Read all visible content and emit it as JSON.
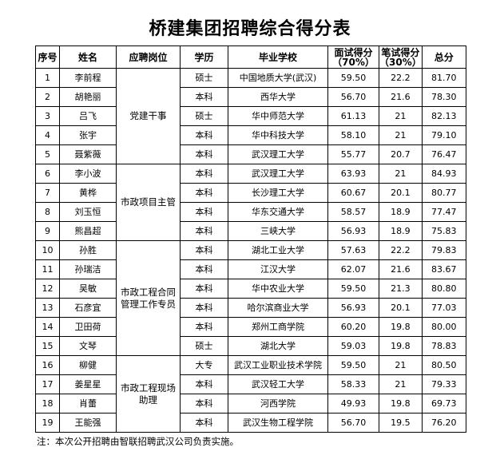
{
  "title": "桥建集团招聘综合得分表",
  "headers": [
    "序号",
    "姓名",
    "应聘岗位",
    "学历",
    "毕业学校",
    "面试得分（70%）",
    "笔试得分（30%）",
    "总分"
  ],
  "groups": [
    {
      "position": "党建干事",
      "rows": [
        [
          "1",
          "李前程",
          "硕士",
          "中国地质大学(武汉)",
          "59.50",
          "22.2",
          "81.70"
        ],
        [
          "2",
          "胡艳丽",
          "本科",
          "西华大学",
          "56.70",
          "21.6",
          "78.30"
        ],
        [
          "3",
          "吕飞",
          "硕士",
          "华中师范大学",
          "61.13",
          "21",
          "82.13"
        ],
        [
          "4",
          "张宇",
          "本科",
          "华中科技大学",
          "58.10",
          "21",
          "79.10"
        ],
        [
          "5",
          "聂紫薇",
          "本科",
          "武汉理工大学",
          "55.77",
          "20.7",
          "76.47"
        ]
      ]
    },
    {
      "position": "市政项目主管",
      "rows": [
        [
          "6",
          "李小波",
          "本科",
          "武汉理工大学",
          "63.93",
          "21",
          "84.93"
        ],
        [
          "7",
          "黄桦",
          "本科",
          "长沙理工大学",
          "60.67",
          "20.1",
          "80.77"
        ],
        [
          "8",
          "刘玉恒",
          "本科",
          "华东交通大学",
          "58.57",
          "18.9",
          "77.47"
        ],
        [
          "9",
          "熊昌超",
          "本科",
          "三峡大学",
          "56.93",
          "18.9",
          "75.83"
        ]
      ]
    },
    {
      "position": "市政工程合同管理工作专员",
      "rows": [
        [
          "10",
          "孙胜",
          "本科",
          "湖北工业大学",
          "57.63",
          "22.2",
          "79.83"
        ],
        [
          "11",
          "孙瑞洁",
          "本科",
          "江汉大学",
          "62.07",
          "21.6",
          "83.67"
        ],
        [
          "12",
          "吴敏",
          "本科",
          "华中农业大学",
          "59.50",
          "21.3",
          "80.80"
        ],
        [
          "13",
          "石彦宜",
          "本科",
          "哈尔滨商业大学",
          "56.93",
          "20.1",
          "77.03"
        ],
        [
          "14",
          "卫田荷",
          "本科",
          "郑州工商学院",
          "60.20",
          "19.8",
          "80.00"
        ],
        [
          "15",
          "文琴",
          "硕士",
          "湖北大学",
          "59.03",
          "19.8",
          "78.83"
        ]
      ]
    },
    {
      "position": "市政工程现场助理",
      "rows": [
        [
          "16",
          "柳健",
          "大专",
          "武汉工业职业技术学院",
          "59.50",
          "21",
          "80.50"
        ],
        [
          "17",
          "姜星星",
          "本科",
          "武汉轻工大学",
          "58.33",
          "21",
          "79.33"
        ],
        [
          "18",
          "肖蕾",
          "本科",
          "河西学院",
          "49.93",
          "19.8",
          "69.73"
        ],
        [
          "19",
          "王能强",
          "本科",
          "武汉生物工程学院",
          "56.70",
          "19.5",
          "76.20"
        ]
      ]
    }
  ],
  "note": "注：本次公开招聘由智联招聘武汉公司负责实施。"
}
